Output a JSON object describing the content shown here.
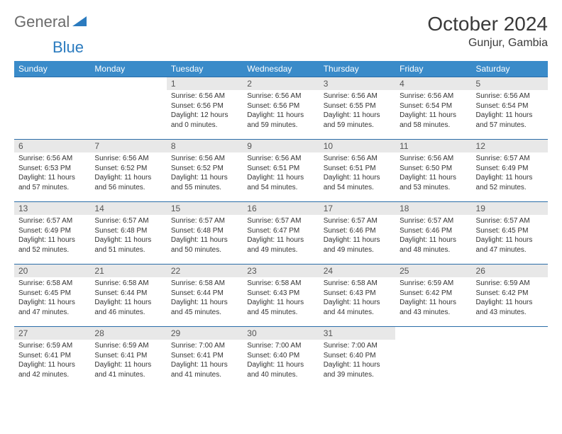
{
  "logo": {
    "general": "General",
    "blue": "Blue"
  },
  "title": "October 2024",
  "location": "Gunjur, Gambia",
  "colors": {
    "header_bg": "#3a8bc9",
    "header_text": "#ffffff",
    "daynum_bg": "#e8e8e8",
    "cell_border": "#2b6da8"
  },
  "dayNames": [
    "Sunday",
    "Monday",
    "Tuesday",
    "Wednesday",
    "Thursday",
    "Friday",
    "Saturday"
  ],
  "weeks": [
    [
      {
        "n": "",
        "sr": "",
        "ss": "",
        "dl": ""
      },
      {
        "n": "",
        "sr": "",
        "ss": "",
        "dl": ""
      },
      {
        "n": "1",
        "sr": "6:56 AM",
        "ss": "6:56 PM",
        "dl": "12 hours and 0 minutes."
      },
      {
        "n": "2",
        "sr": "6:56 AM",
        "ss": "6:56 PM",
        "dl": "11 hours and 59 minutes."
      },
      {
        "n": "3",
        "sr": "6:56 AM",
        "ss": "6:55 PM",
        "dl": "11 hours and 59 minutes."
      },
      {
        "n": "4",
        "sr": "6:56 AM",
        "ss": "6:54 PM",
        "dl": "11 hours and 58 minutes."
      },
      {
        "n": "5",
        "sr": "6:56 AM",
        "ss": "6:54 PM",
        "dl": "11 hours and 57 minutes."
      }
    ],
    [
      {
        "n": "6",
        "sr": "6:56 AM",
        "ss": "6:53 PM",
        "dl": "11 hours and 57 minutes."
      },
      {
        "n": "7",
        "sr": "6:56 AM",
        "ss": "6:52 PM",
        "dl": "11 hours and 56 minutes."
      },
      {
        "n": "8",
        "sr": "6:56 AM",
        "ss": "6:52 PM",
        "dl": "11 hours and 55 minutes."
      },
      {
        "n": "9",
        "sr": "6:56 AM",
        "ss": "6:51 PM",
        "dl": "11 hours and 54 minutes."
      },
      {
        "n": "10",
        "sr": "6:56 AM",
        "ss": "6:51 PM",
        "dl": "11 hours and 54 minutes."
      },
      {
        "n": "11",
        "sr": "6:56 AM",
        "ss": "6:50 PM",
        "dl": "11 hours and 53 minutes."
      },
      {
        "n": "12",
        "sr": "6:57 AM",
        "ss": "6:49 PM",
        "dl": "11 hours and 52 minutes."
      }
    ],
    [
      {
        "n": "13",
        "sr": "6:57 AM",
        "ss": "6:49 PM",
        "dl": "11 hours and 52 minutes."
      },
      {
        "n": "14",
        "sr": "6:57 AM",
        "ss": "6:48 PM",
        "dl": "11 hours and 51 minutes."
      },
      {
        "n": "15",
        "sr": "6:57 AM",
        "ss": "6:48 PM",
        "dl": "11 hours and 50 minutes."
      },
      {
        "n": "16",
        "sr": "6:57 AM",
        "ss": "6:47 PM",
        "dl": "11 hours and 49 minutes."
      },
      {
        "n": "17",
        "sr": "6:57 AM",
        "ss": "6:46 PM",
        "dl": "11 hours and 49 minutes."
      },
      {
        "n": "18",
        "sr": "6:57 AM",
        "ss": "6:46 PM",
        "dl": "11 hours and 48 minutes."
      },
      {
        "n": "19",
        "sr": "6:57 AM",
        "ss": "6:45 PM",
        "dl": "11 hours and 47 minutes."
      }
    ],
    [
      {
        "n": "20",
        "sr": "6:58 AM",
        "ss": "6:45 PM",
        "dl": "11 hours and 47 minutes."
      },
      {
        "n": "21",
        "sr": "6:58 AM",
        "ss": "6:44 PM",
        "dl": "11 hours and 46 minutes."
      },
      {
        "n": "22",
        "sr": "6:58 AM",
        "ss": "6:44 PM",
        "dl": "11 hours and 45 minutes."
      },
      {
        "n": "23",
        "sr": "6:58 AM",
        "ss": "6:43 PM",
        "dl": "11 hours and 45 minutes."
      },
      {
        "n": "24",
        "sr": "6:58 AM",
        "ss": "6:43 PM",
        "dl": "11 hours and 44 minutes."
      },
      {
        "n": "25",
        "sr": "6:59 AM",
        "ss": "6:42 PM",
        "dl": "11 hours and 43 minutes."
      },
      {
        "n": "26",
        "sr": "6:59 AM",
        "ss": "6:42 PM",
        "dl": "11 hours and 43 minutes."
      }
    ],
    [
      {
        "n": "27",
        "sr": "6:59 AM",
        "ss": "6:41 PM",
        "dl": "11 hours and 42 minutes."
      },
      {
        "n": "28",
        "sr": "6:59 AM",
        "ss": "6:41 PM",
        "dl": "11 hours and 41 minutes."
      },
      {
        "n": "29",
        "sr": "7:00 AM",
        "ss": "6:41 PM",
        "dl": "11 hours and 41 minutes."
      },
      {
        "n": "30",
        "sr": "7:00 AM",
        "ss": "6:40 PM",
        "dl": "11 hours and 40 minutes."
      },
      {
        "n": "31",
        "sr": "7:00 AM",
        "ss": "6:40 PM",
        "dl": "11 hours and 39 minutes."
      },
      {
        "n": "",
        "sr": "",
        "ss": "",
        "dl": ""
      },
      {
        "n": "",
        "sr": "",
        "ss": "",
        "dl": ""
      }
    ]
  ],
  "labels": {
    "sunrise": "Sunrise:",
    "sunset": "Sunset:",
    "daylight": "Daylight:"
  }
}
